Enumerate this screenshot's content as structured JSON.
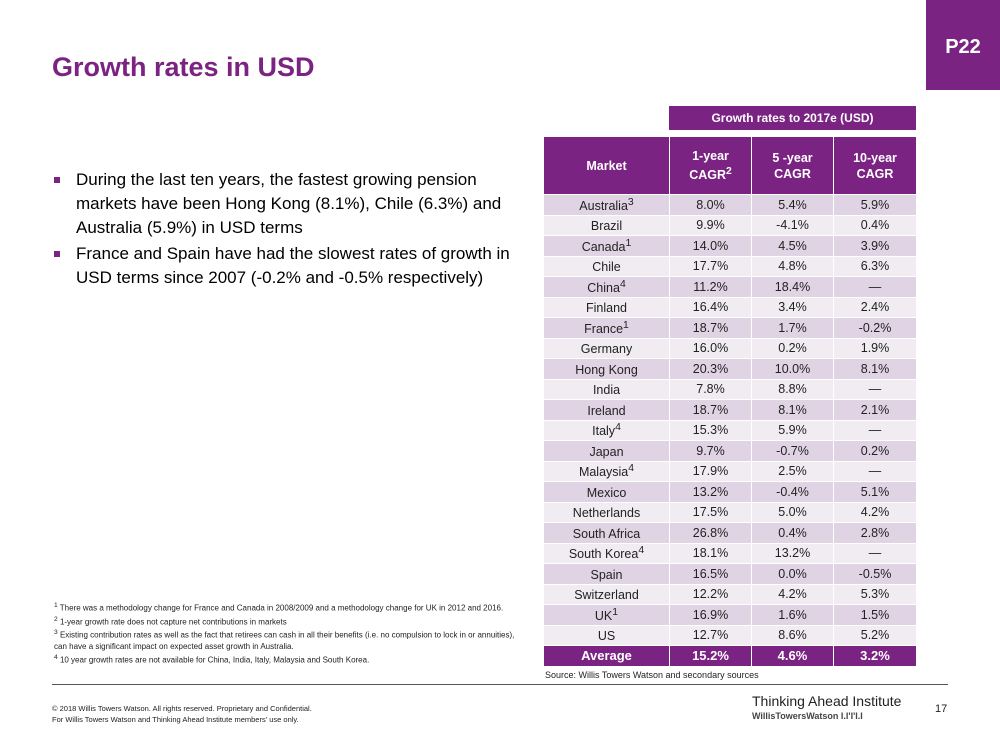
{
  "page_badge": "P22",
  "title": "Growth rates in USD",
  "bullets": [
    "During the last ten years, the fastest growing pension markets have been Hong Kong (8.1%), Chile (6.3%) and Australia (5.9%) in USD terms",
    "France and Spain have had the slowest rates of growth in USD terms since 2007 (-0.2% and -0.5% respectively)"
  ],
  "table": {
    "group_header": "Growth rates to 2017e (USD)",
    "col_market": "Market",
    "col_1yr": "1-year",
    "col_1yr_sub": "CAGR",
    "col_1yr_sup": "2",
    "col_5yr": "5 -year",
    "col_5yr_sub": "CAGR",
    "col_10yr": "10-year",
    "col_10yr_sub": "CAGR",
    "rows": [
      {
        "market": "Australia",
        "sup": "3",
        "y1": "8.0%",
        "y5": "5.4%",
        "y10": "5.9%"
      },
      {
        "market": "Brazil",
        "sup": "",
        "y1": "9.9%",
        "y5": "-4.1%",
        "y10": "0.4%"
      },
      {
        "market": "Canada",
        "sup": "1",
        "y1": "14.0%",
        "y5": "4.5%",
        "y10": "3.9%"
      },
      {
        "market": "Chile",
        "sup": "",
        "y1": "17.7%",
        "y5": "4.8%",
        "y10": "6.3%"
      },
      {
        "market": "China",
        "sup": "4",
        "y1": "11.2%",
        "y5": "18.4%",
        "y10": "—"
      },
      {
        "market": "Finland",
        "sup": "",
        "y1": "16.4%",
        "y5": "3.4%",
        "y10": "2.4%"
      },
      {
        "market": "France",
        "sup": "1",
        "y1": "18.7%",
        "y5": "1.7%",
        "y10": "-0.2%"
      },
      {
        "market": "Germany",
        "sup": "",
        "y1": "16.0%",
        "y5": "0.2%",
        "y10": "1.9%"
      },
      {
        "market": "Hong Kong",
        "sup": "",
        "y1": "20.3%",
        "y5": "10.0%",
        "y10": "8.1%"
      },
      {
        "market": "India",
        "sup": "",
        "y1": "7.8%",
        "y5": "8.8%",
        "y10": "—"
      },
      {
        "market": "Ireland",
        "sup": "",
        "y1": "18.7%",
        "y5": "8.1%",
        "y10": "2.1%"
      },
      {
        "market": "Italy",
        "sup": "4",
        "y1": "15.3%",
        "y5": "5.9%",
        "y10": "—"
      },
      {
        "market": "Japan",
        "sup": "",
        "y1": "9.7%",
        "y5": "-0.7%",
        "y10": "0.2%"
      },
      {
        "market": "Malaysia",
        "sup": "4",
        "y1": "17.9%",
        "y5": "2.5%",
        "y10": "—"
      },
      {
        "market": "Mexico",
        "sup": "",
        "y1": "13.2%",
        "y5": "-0.4%",
        "y10": "5.1%"
      },
      {
        "market": "Netherlands",
        "sup": "",
        "y1": "17.5%",
        "y5": "5.0%",
        "y10": "4.2%"
      },
      {
        "market": "South Africa",
        "sup": "",
        "y1": "26.8%",
        "y5": "0.4%",
        "y10": "2.8%"
      },
      {
        "market": "South Korea",
        "sup": "4",
        "y1": "18.1%",
        "y5": "13.2%",
        "y10": "—"
      },
      {
        "market": "Spain",
        "sup": "",
        "y1": "16.5%",
        "y5": "0.0%",
        "y10": "-0.5%"
      },
      {
        "market": "Switzerland",
        "sup": "",
        "y1": "12.2%",
        "y5": "4.2%",
        "y10": "5.3%"
      },
      {
        "market": "UK",
        "sup": "1",
        "y1": "16.9%",
        "y5": "1.6%",
        "y10": "1.5%"
      },
      {
        "market": "US",
        "sup": "",
        "y1": "12.7%",
        "y5": "8.6%",
        "y10": "5.2%"
      }
    ],
    "average": {
      "market": "Average",
      "y1": "15.2%",
      "y5": "4.6%",
      "y10": "3.2%"
    }
  },
  "source": "Source: Willis Towers Watson and secondary sources",
  "footnotes": [
    {
      "sup": "1",
      "text": "There was a methodology change for France and Canada in 2008/2009 and a methodology change for UK in 2012 and 2016."
    },
    {
      "sup": "2",
      "text": "1-year growth rate does not capture net contributions in markets"
    },
    {
      "sup": "3",
      "text": "Existing contribution rates as well as the fact that retirees can cash in all their benefits (i.e. no compulsion to lock in or annuities), can have a significant impact on expected asset growth in Australia."
    },
    {
      "sup": "4",
      "text": "10 year growth rates are not available for China, India, Italy, Malaysia and South Korea."
    }
  ],
  "copyright_line1": "© 2018 Willis Towers Watson. All rights reserved. Proprietary and Confidential.",
  "copyright_line2": "For Willis Towers Watson and Thinking Ahead Institute members' use only.",
  "brand_main": "Thinking Ahead Institute",
  "brand_sub": "WillisTowersWatson I.I'I'I.I",
  "page_number": "17",
  "colors": {
    "accent": "#7b2382",
    "row_dark": "#e0d4e4",
    "row_light": "#f1ebf2"
  }
}
